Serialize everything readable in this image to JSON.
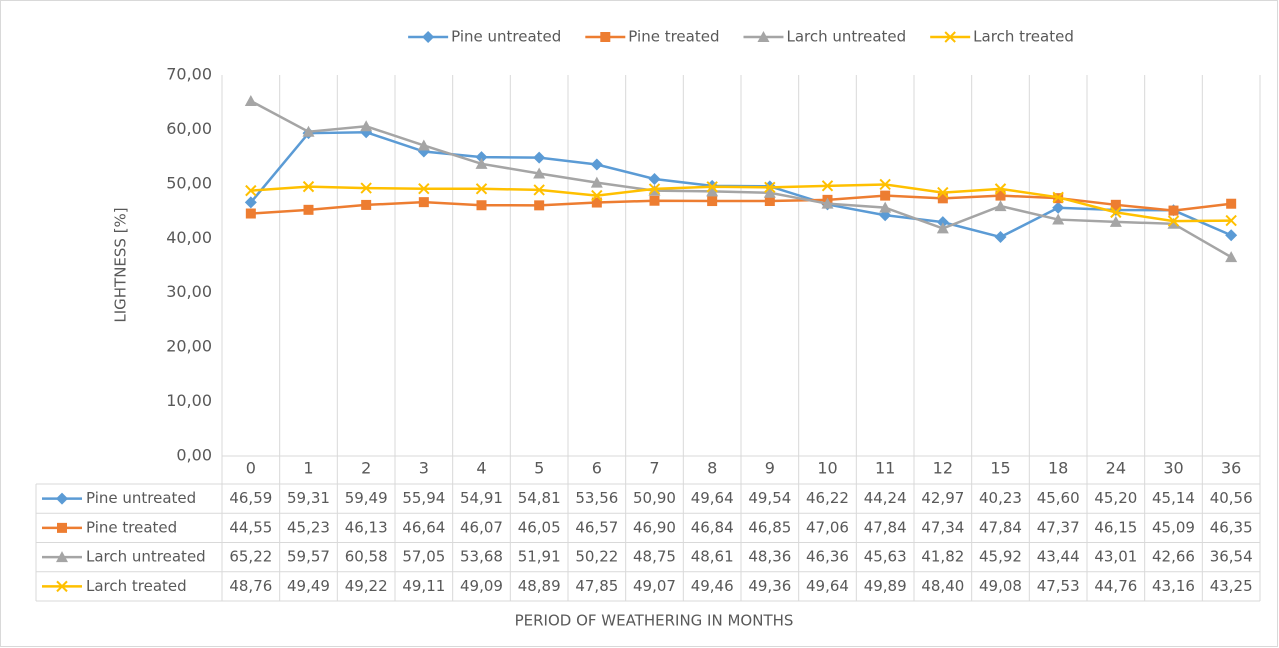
{
  "chart_data": {
    "type": "line",
    "x_axis_label": "PERIOD OF WEATHERING IN MONTHS",
    "y_axis_label": "LIGHTNESS [%]",
    "categories": [
      "0",
      "1",
      "2",
      "3",
      "4",
      "5",
      "6",
      "7",
      "8",
      "9",
      "10",
      "11",
      "12",
      "15",
      "18",
      "24",
      "30",
      "36"
    ],
    "ylim": [
      0,
      70
    ],
    "yticks": [
      {
        "value": 0,
        "label": "0,00"
      },
      {
        "value": 10,
        "label": "10,00"
      },
      {
        "value": 20,
        "label": "20,00"
      },
      {
        "value": 30,
        "label": "30,00"
      },
      {
        "value": 40,
        "label": "40,00"
      },
      {
        "value": 50,
        "label": "50,00"
      },
      {
        "value": 60,
        "label": "60,00"
      },
      {
        "value": 70,
        "label": "70,00"
      }
    ],
    "grid": false,
    "legend": "top",
    "series": [
      {
        "name": "Pine untreated",
        "color": "#5b9bd5",
        "marker": "diamond",
        "values": [
          46.59,
          59.31,
          59.49,
          55.94,
          54.91,
          54.81,
          53.56,
          50.9,
          49.64,
          49.54,
          46.22,
          44.24,
          42.97,
          40.23,
          45.6,
          45.2,
          45.14,
          40.56
        ],
        "value_labels": [
          "46,59",
          "59,31",
          "59,49",
          "55,94",
          "54,91",
          "54,81",
          "53,56",
          "50,90",
          "49,64",
          "49,54",
          "46,22",
          "44,24",
          "42,97",
          "40,23",
          "45,60",
          "45,20",
          "45,14",
          "40,56"
        ]
      },
      {
        "name": "Pine treated",
        "color": "#ed7d31",
        "marker": "square",
        "values": [
          44.55,
          45.23,
          46.13,
          46.64,
          46.07,
          46.05,
          46.57,
          46.9,
          46.84,
          46.85,
          47.06,
          47.84,
          47.34,
          47.84,
          47.37,
          46.15,
          45.09,
          46.35
        ],
        "value_labels": [
          "44,55",
          "45,23",
          "46,13",
          "46,64",
          "46,07",
          "46,05",
          "46,57",
          "46,90",
          "46,84",
          "46,85",
          "47,06",
          "47,84",
          "47,34",
          "47,84",
          "47,37",
          "46,15",
          "45,09",
          "46,35"
        ]
      },
      {
        "name": "Larch untreated",
        "color": "#a5a5a5",
        "marker": "triangle",
        "values": [
          65.22,
          59.57,
          60.58,
          57.05,
          53.68,
          51.91,
          50.22,
          48.75,
          48.61,
          48.36,
          46.36,
          45.63,
          41.82,
          45.92,
          43.44,
          43.01,
          42.66,
          36.54
        ],
        "value_labels": [
          "65,22",
          "59,57",
          "60,58",
          "57,05",
          "53,68",
          "51,91",
          "50,22",
          "48,75",
          "48,61",
          "48,36",
          "46,36",
          "45,63",
          "41,82",
          "45,92",
          "43,44",
          "43,01",
          "42,66",
          "36,54"
        ]
      },
      {
        "name": "Larch treated",
        "color": "#ffc000",
        "marker": "x",
        "values": [
          48.76,
          49.49,
          49.22,
          49.11,
          49.09,
          48.89,
          47.85,
          49.07,
          49.46,
          49.36,
          49.64,
          49.89,
          48.4,
          49.08,
          47.53,
          44.76,
          43.16,
          43.25
        ],
        "value_labels": [
          "48,76",
          "49,49",
          "49,22",
          "49,11",
          "49,09",
          "48,89",
          "47,85",
          "49,07",
          "49,46",
          "49,36",
          "49,64",
          "49,89",
          "48,40",
          "49,08",
          "47,53",
          "44,76",
          "43,16",
          "43,25"
        ]
      }
    ]
  }
}
